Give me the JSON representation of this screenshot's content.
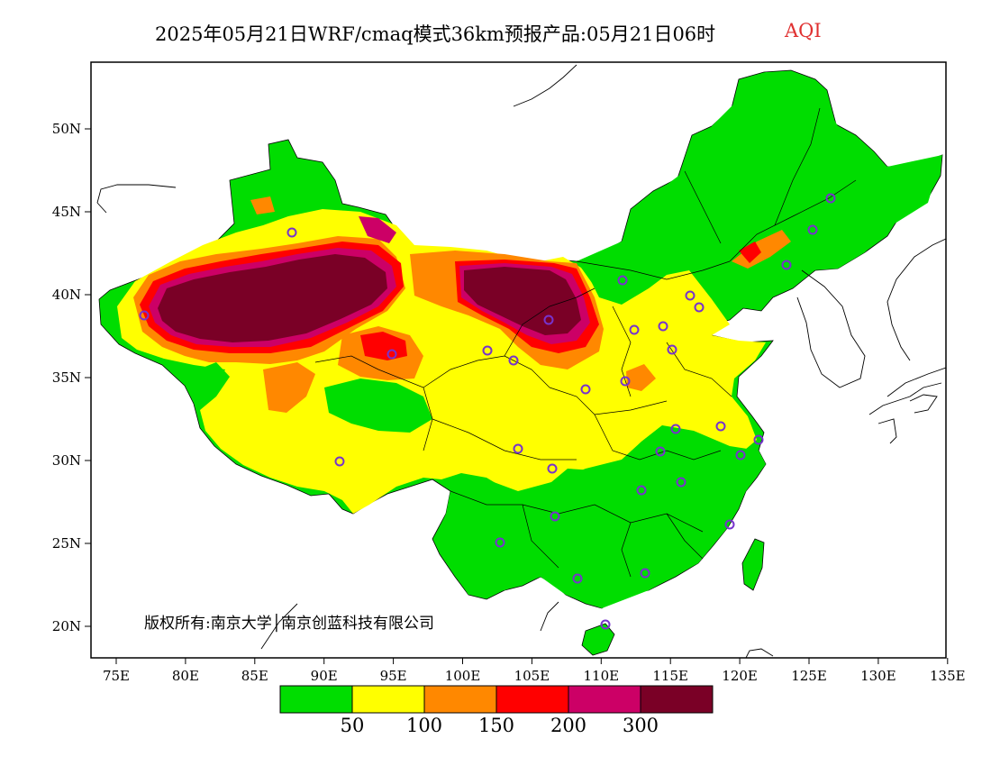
{
  "title": {
    "main": "2025年05月21日WRF/cmaq模式36km预报产品:05月21日06时",
    "variable": "AQI"
  },
  "map": {
    "lon_ticks": [
      "75E",
      "80E",
      "85E",
      "90E",
      "95E",
      "100E",
      "105E",
      "110E",
      "115E",
      "120E",
      "125E",
      "130E",
      "135E"
    ],
    "lat_ticks": [
      "50N",
      "45N",
      "40N",
      "35N",
      "30N",
      "25N",
      "20N"
    ],
    "copyright": "版权所有:南京大学│南京创蓝科技有限公司"
  },
  "legend": {
    "colors": [
      "#00dd00",
      "#ffff00",
      "#ff8800",
      "#ff0000",
      "#cc0066",
      "#7a0026"
    ],
    "labels": [
      "50",
      "100",
      "150",
      "200",
      "300"
    ]
  },
  "colors": {
    "good": "#00dd00",
    "moderate": "#ffff00",
    "unhealthy_sensitive": "#ff8800",
    "unhealthy": "#ff0000",
    "very_unhealthy": "#cc0066",
    "hazardous": "#7a0026",
    "station_marker": "#7733cc"
  }
}
